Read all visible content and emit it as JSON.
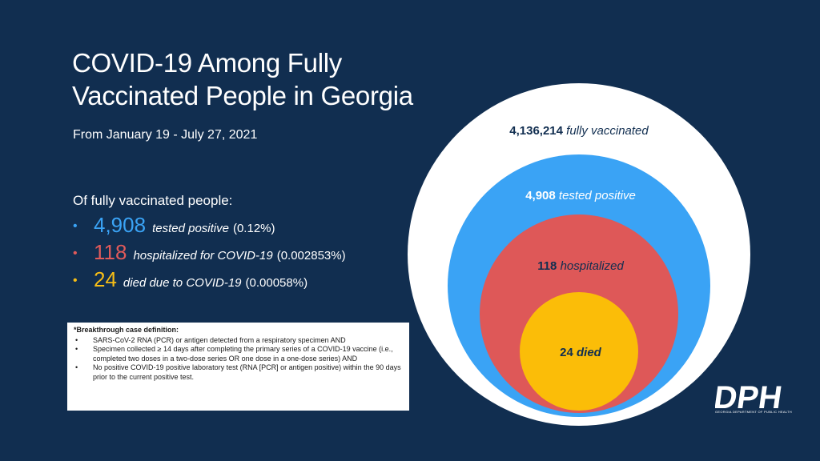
{
  "title_line1": "COVID-19 Among Fully",
  "title_line2": "Vaccinated People in Georgia",
  "subtitle": "From January 19 - July 27, 2021",
  "stats_heading": "Of fully vaccinated people:",
  "stats": [
    {
      "bullet": "•",
      "number": "4,908",
      "desc": "tested positive",
      "pct": "(0.12%)",
      "color": "#3aa3f5"
    },
    {
      "bullet": "•",
      "number": "118",
      "desc": "hospitalized for COVID-19",
      "pct": "(0.002853%)",
      "color": "#e05a5a"
    },
    {
      "bullet": "•",
      "number": "24",
      "desc": "died due to COVID-19",
      "pct": "(0.00058%)",
      "color": "#f6bd16"
    }
  ],
  "definition": {
    "title": "*Breakthrough case definition:",
    "items": [
      {
        "bullet": "•",
        "text": "SARS-CoV-2 RNA (PCR) or antigen detected from a respiratory specimen AND"
      },
      {
        "bullet": "•",
        "text": "Specimen collected ≥ 14 days after completing the primary series of a COVID-19 vaccine (i.e., completed two doses in a two-dose series OR one dose in a one-dose series) AND"
      },
      {
        "bullet": "•",
        "text": "No positive COVID-19 positive laboratory test (RNA [PCR] or antigen positive) within the 90 days prior to the current positive test."
      }
    ]
  },
  "circles": [
    {
      "number": "4,136,214",
      "label": "fully vaccinated",
      "value": 4136214,
      "fill": "#ffffff",
      "text_color": "#112e50"
    },
    {
      "number": "4,908",
      "label": "tested positive",
      "value": 4908,
      "fill": "#3aa3f5",
      "text_color": "#ffffff"
    },
    {
      "number": "118",
      "label": "hospitalized",
      "value": 118,
      "fill": "#de5858",
      "text_color": "#112e50"
    },
    {
      "number": "24",
      "label": "died",
      "value": 24,
      "fill": "#fbbd08",
      "text_color": "#112e50"
    }
  ],
  "logo": {
    "text": "DPH",
    "subtext": "GEORGIA DEPARTMENT OF PUBLIC HEALTH"
  },
  "colors": {
    "background": "#112e50",
    "blue": "#3aa3f5",
    "red": "#e05a5a",
    "yellow": "#f6bd16"
  }
}
